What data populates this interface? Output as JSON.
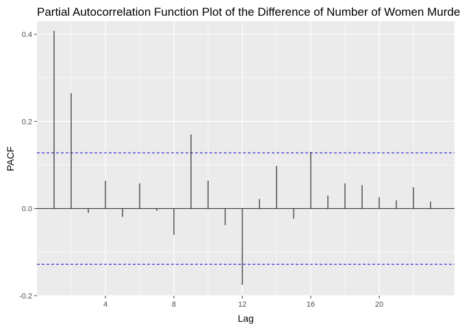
{
  "chart_data": {
    "type": "bar",
    "title": "Partial Autocorrelation Function Plot of the Difference of Number of Women Murdered",
    "xlabel": "Lag",
    "ylabel": "PACF",
    "xlim": [
      0,
      24.4
    ],
    "ylim": [
      -0.2,
      0.43
    ],
    "xticks": [
      4,
      8,
      12,
      16,
      20
    ],
    "yticks": [
      -0.2,
      0.0,
      0.2,
      0.4
    ],
    "ytick_labels": [
      "-0.2",
      "0.0",
      "0.2",
      "0.4"
    ],
    "grid": true,
    "background": "#ebebeb",
    "confidence_bound": 0.128,
    "confidence_color": "#0000cc",
    "lags": [
      1,
      2,
      3,
      4,
      5,
      6,
      7,
      8,
      9,
      10,
      11,
      12,
      13,
      14,
      15,
      16,
      17,
      18,
      19,
      20,
      21,
      22,
      23
    ],
    "values": [
      0.408,
      0.265,
      -0.01,
      0.064,
      -0.019,
      0.058,
      -0.005,
      -0.06,
      0.17,
      0.064,
      -0.038,
      -0.175,
      0.022,
      0.098,
      -0.023,
      0.13,
      0.03,
      0.058,
      0.054,
      0.026,
      0.019,
      0.049,
      0.016
    ]
  }
}
